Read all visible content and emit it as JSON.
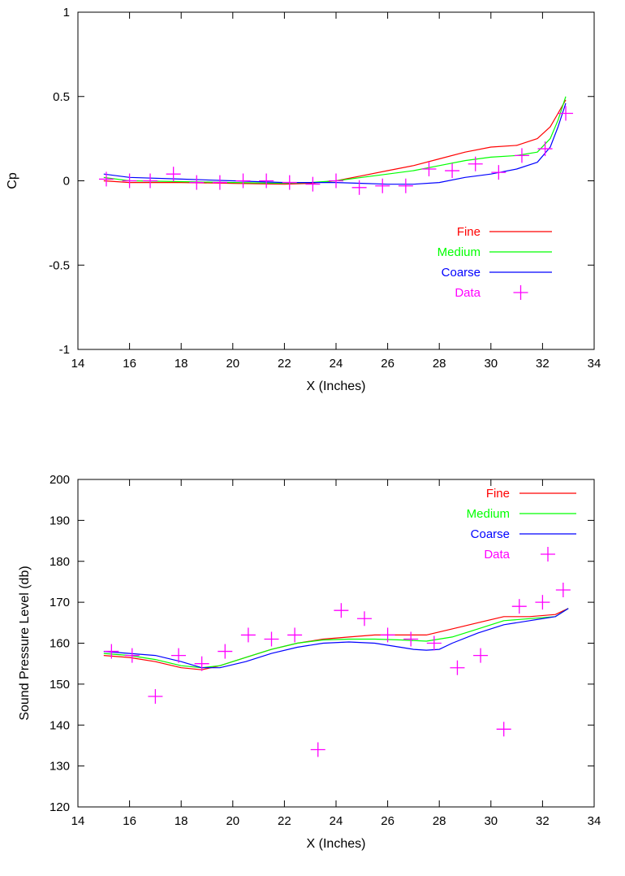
{
  "chart_data": [
    {
      "type": "line",
      "xlabel": "X (Inches)",
      "ylabel": "Cp",
      "xlim": [
        14,
        34
      ],
      "ylim": [
        -1,
        1
      ],
      "xticks": [
        "14",
        "16",
        "18",
        "20",
        "22",
        "24",
        "26",
        "28",
        "30",
        "32",
        "34"
      ],
      "yticks": [
        "-1",
        "-0.5",
        "0",
        "0.5",
        "1"
      ],
      "legend_position": "lower-right",
      "grid": false,
      "series": [
        {
          "name": "Fine",
          "style": "line",
          "color": "#ff0000",
          "x": [
            15,
            16,
            18,
            20,
            22,
            23,
            24,
            25,
            26,
            27,
            28,
            29,
            30,
            31,
            31.8,
            32.3,
            32.6,
            32.9
          ],
          "y": [
            0.0,
            -0.01,
            -0.01,
            -0.015,
            -0.02,
            -0.015,
            0.0,
            0.03,
            0.06,
            0.09,
            0.13,
            0.17,
            0.2,
            0.21,
            0.25,
            0.32,
            0.4,
            0.48
          ]
        },
        {
          "name": "Medium",
          "style": "line",
          "color": "#00ff00",
          "x": [
            15,
            16,
            18,
            20,
            22,
            23,
            24,
            25,
            26,
            27,
            28,
            29,
            30,
            31,
            31.8,
            32.3,
            32.6,
            32.9
          ],
          "y": [
            0.02,
            0.0,
            -0.005,
            -0.01,
            -0.015,
            -0.01,
            0.0,
            0.02,
            0.04,
            0.06,
            0.09,
            0.12,
            0.14,
            0.15,
            0.17,
            0.25,
            0.36,
            0.5
          ]
        },
        {
          "name": "Coarse",
          "style": "line",
          "color": "#0000ff",
          "x": [
            15,
            16,
            18,
            20,
            22,
            24,
            25,
            26,
            27,
            28,
            29,
            30,
            31,
            31.8,
            32.3,
            32.6,
            32.9
          ],
          "y": [
            0.04,
            0.02,
            0.01,
            0.0,
            -0.01,
            -0.01,
            -0.015,
            -0.02,
            -0.02,
            -0.01,
            0.02,
            0.04,
            0.07,
            0.11,
            0.2,
            0.32,
            0.46
          ]
        },
        {
          "name": "Data",
          "style": "points",
          "color": "#ff00ff",
          "x": [
            15.1,
            16.0,
            16.8,
            17.7,
            18.6,
            19.5,
            20.4,
            21.3,
            22.2,
            23.1,
            24.0,
            24.9,
            25.8,
            26.7,
            27.6,
            28.5,
            29.4,
            30.3,
            31.2,
            32.1,
            32.9
          ],
          "y": [
            0.01,
            0.0,
            0.0,
            0.04,
            -0.01,
            -0.01,
            0.0,
            0.0,
            -0.01,
            -0.02,
            0.0,
            -0.04,
            -0.03,
            -0.03,
            0.07,
            0.06,
            0.1,
            0.05,
            0.15,
            0.19,
            0.4
          ]
        }
      ]
    },
    {
      "type": "line",
      "xlabel": "X (Inches)",
      "ylabel": "Sound Pressure Level (db)",
      "xlim": [
        14,
        34
      ],
      "ylim": [
        120,
        200
      ],
      "xticks": [
        "14",
        "16",
        "18",
        "20",
        "22",
        "24",
        "26",
        "28",
        "30",
        "32",
        "34"
      ],
      "yticks": [
        "120",
        "130",
        "140",
        "150",
        "160",
        "170",
        "180",
        "190",
        "200"
      ],
      "legend_position": "top-right",
      "grid": false,
      "series": [
        {
          "name": "Fine",
          "style": "line",
          "color": "#ff0000",
          "x": [
            15,
            16,
            17,
            18,
            18.8,
            19.5,
            20.5,
            21.5,
            22.5,
            23.5,
            24.5,
            25.5,
            26.5,
            27.5,
            28.5,
            29.5,
            30.5,
            31.5,
            32.5,
            33
          ],
          "y": [
            157,
            156.5,
            155.5,
            154,
            153.5,
            154.5,
            156.5,
            158.5,
            160,
            161,
            161.5,
            162,
            162,
            162,
            163.5,
            165,
            166.5,
            166.5,
            167,
            168.5
          ]
        },
        {
          "name": "Medium",
          "style": "line",
          "color": "#00ff00",
          "x": [
            15,
            16,
            17,
            18,
            18.8,
            19.5,
            20.5,
            21.5,
            22.5,
            23.5,
            24.5,
            25.5,
            26.5,
            27.5,
            28.5,
            29.5,
            30.5,
            31.5,
            32.5,
            33
          ],
          "y": [
            157.5,
            157,
            156,
            154.5,
            154,
            154.5,
            156.5,
            158.5,
            160,
            160.8,
            161,
            161,
            160.8,
            160.5,
            161.5,
            163.5,
            165.5,
            166,
            166.5,
            168.5
          ]
        },
        {
          "name": "Coarse",
          "style": "line",
          "color": "#0000ff",
          "x": [
            15,
            16,
            17,
            18,
            18.8,
            19.5,
            20.5,
            21.5,
            22.5,
            23.5,
            24.5,
            25.5,
            26.5,
            27.0,
            27.5,
            28.0,
            28.5,
            29.5,
            30.5,
            31.5,
            32.5,
            33
          ],
          "y": [
            158,
            157.5,
            157,
            155.5,
            154,
            154,
            155.5,
            157.5,
            159,
            160,
            160.3,
            160,
            159,
            158.5,
            158.3,
            158.5,
            160,
            162.5,
            164.5,
            165.5,
            166.5,
            168.5
          ]
        },
        {
          "name": "Data",
          "style": "points",
          "color": "#ff00ff",
          "x": [
            15.3,
            16.1,
            17.0,
            17.9,
            18.8,
            19.7,
            20.6,
            21.5,
            22.4,
            23.3,
            24.2,
            25.1,
            26.0,
            26.9,
            27.8,
            28.7,
            29.6,
            30.5,
            31.1,
            32.0,
            32.8
          ],
          "y": [
            158,
            157,
            147,
            157,
            155,
            158,
            162,
            161,
            162,
            134,
            168,
            166,
            162,
            161,
            160,
            154,
            157,
            139,
            169,
            170,
            173
          ]
        }
      ]
    }
  ]
}
